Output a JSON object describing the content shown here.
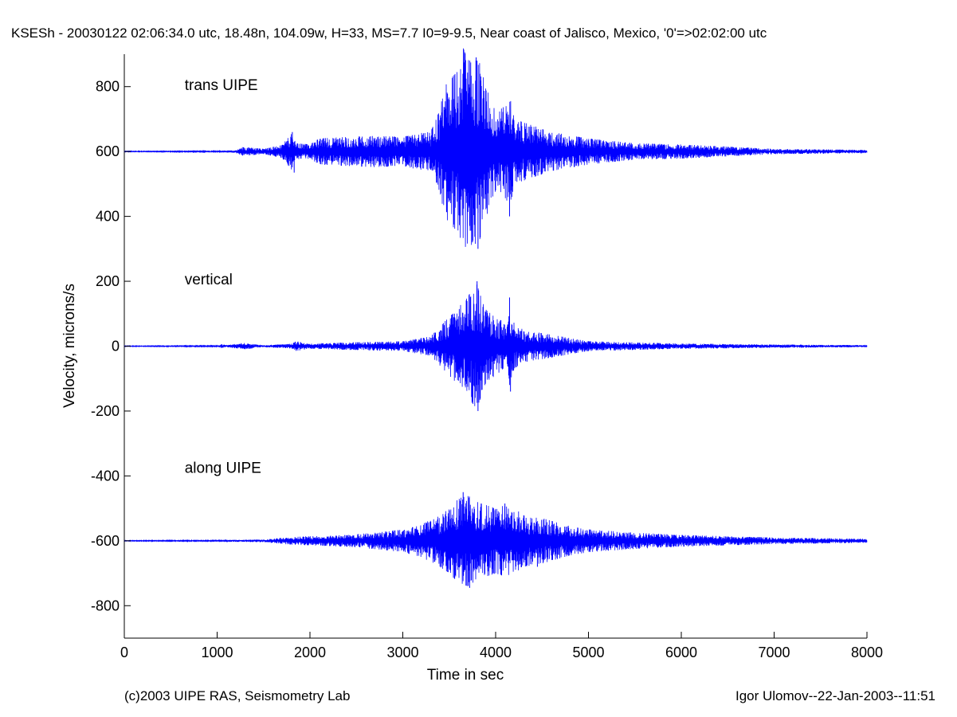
{
  "footer": {
    "left": "(c)2003 UIPE RAS, Seismometry Lab",
    "right": "Igor Ulomov--22-Jan-2003--11:51"
  },
  "chart_data": {
    "type": "line",
    "title": "KSESh - 20030122 02:06:34.0 utc, 18.48n, 104.09w, H=33, MS=7.7 I0=9-9.5, Near coast of Jalisco, Mexico, '0'=>02:02:00 utc",
    "xlabel": "Time in sec",
    "ylabel": "Velocity, microns/s",
    "xlim": [
      0,
      8000
    ],
    "ylim": [
      -900,
      900
    ],
    "xticks": [
      0,
      1000,
      2000,
      3000,
      4000,
      5000,
      6000,
      7000,
      8000
    ],
    "yticks": [
      -800,
      -600,
      -400,
      -200,
      0,
      200,
      400,
      600,
      800
    ],
    "grid": false,
    "line_color": "#0000ff",
    "series": [
      {
        "name": "trans UIPE",
        "label_position": [
          650,
          790
        ],
        "offset": 600,
        "envelope": [
          [
            0,
            1
          ],
          [
            1000,
            1.5
          ],
          [
            1200,
            4
          ],
          [
            1280,
            14
          ],
          [
            1500,
            8
          ],
          [
            1700,
            20
          ],
          [
            1800,
            55
          ],
          [
            1850,
            25
          ],
          [
            2000,
            22
          ],
          [
            2100,
            40
          ],
          [
            2400,
            45
          ],
          [
            2700,
            48
          ],
          [
            3000,
            45
          ],
          [
            3200,
            58
          ],
          [
            3300,
            60
          ],
          [
            3400,
            130
          ],
          [
            3450,
            200
          ],
          [
            3500,
            220
          ],
          [
            3600,
            250
          ],
          [
            3650,
            320
          ],
          [
            3700,
            280
          ],
          [
            3750,
            290
          ],
          [
            3800,
            300
          ],
          [
            3850,
            250
          ],
          [
            3900,
            200
          ],
          [
            4000,
            120
          ],
          [
            4100,
            140
          ],
          [
            4150,
            180
          ],
          [
            4200,
            100
          ],
          [
            4300,
            90
          ],
          [
            4400,
            80
          ],
          [
            4500,
            70
          ],
          [
            4600,
            60
          ],
          [
            4700,
            55
          ],
          [
            5000,
            40
          ],
          [
            5500,
            25
          ],
          [
            6000,
            22
          ],
          [
            7000,
            8
          ],
          [
            8000,
            5
          ]
        ],
        "peaks": [
          [
            3750,
            -280
          ],
          [
            3790,
            290
          ],
          [
            3810,
            -300
          ],
          [
            3800,
            280
          ],
          [
            4150,
            -200
          ],
          [
            1810,
            60
          ],
          [
            1830,
            -65
          ]
        ]
      },
      {
        "name": "vertical",
        "label_position": [
          650,
          190
        ],
        "offset": 0,
        "envelope": [
          [
            0,
            1
          ],
          [
            1000,
            1.5
          ],
          [
            1050,
            6
          ],
          [
            1100,
            3
          ],
          [
            1280,
            10
          ],
          [
            1500,
            3
          ],
          [
            1800,
            7
          ],
          [
            1850,
            15
          ],
          [
            2000,
            8
          ],
          [
            2500,
            12
          ],
          [
            3000,
            15
          ],
          [
            3200,
            25
          ],
          [
            3300,
            30
          ],
          [
            3400,
            60
          ],
          [
            3500,
            90
          ],
          [
            3600,
            120
          ],
          [
            3700,
            150
          ],
          [
            3750,
            180
          ],
          [
            3800,
            190
          ],
          [
            3850,
            150
          ],
          [
            3900,
            110
          ],
          [
            4000,
            90
          ],
          [
            4100,
            80
          ],
          [
            4150,
            120
          ],
          [
            4200,
            70
          ],
          [
            4300,
            50
          ],
          [
            4400,
            45
          ],
          [
            4500,
            40
          ],
          [
            4700,
            30
          ],
          [
            5000,
            15
          ],
          [
            6000,
            8
          ],
          [
            7000,
            5
          ],
          [
            8000,
            3
          ]
        ],
        "peaks": [
          [
            3800,
            200
          ],
          [
            3810,
            -200
          ],
          [
            4150,
            150
          ],
          [
            4160,
            -140
          ]
        ]
      },
      {
        "name": "along UIPE",
        "label_position": [
          650,
          -390
        ],
        "offset": -600,
        "envelope": [
          [
            0,
            1
          ],
          [
            1000,
            1.5
          ],
          [
            1200,
            3
          ],
          [
            1500,
            4
          ],
          [
            1800,
            12
          ],
          [
            2000,
            14
          ],
          [
            2400,
            18
          ],
          [
            2800,
            28
          ],
          [
            3000,
            35
          ],
          [
            3200,
            50
          ],
          [
            3400,
            80
          ],
          [
            3500,
            100
          ],
          [
            3600,
            130
          ],
          [
            3700,
            140
          ],
          [
            3800,
            120
          ],
          [
            3900,
            110
          ],
          [
            4000,
            100
          ],
          [
            4100,
            110
          ],
          [
            4200,
            100
          ],
          [
            4300,
            80
          ],
          [
            4500,
            70
          ],
          [
            4800,
            45
          ],
          [
            5000,
            35
          ],
          [
            5500,
            25
          ],
          [
            6000,
            18
          ],
          [
            7000,
            10
          ],
          [
            8000,
            6
          ]
        ],
        "peaks": [
          [
            3720,
            -145
          ],
          [
            3650,
            150
          ],
          [
            4100,
            115
          ],
          [
            4450,
            -80
          ]
        ]
      }
    ]
  }
}
